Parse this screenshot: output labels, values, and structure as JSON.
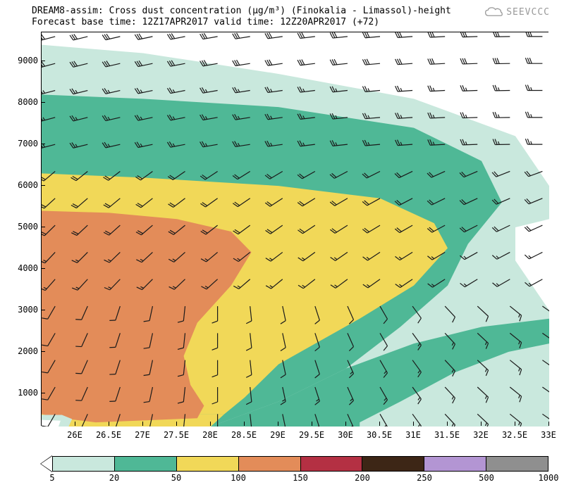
{
  "title_line1": "DREAM8-assim: Cross dust concentration (µg/m³) (Finokalia - Limassol)-height",
  "title_line2": "Forecast base time: 12Z17APR2017    valid time: 12Z20APR2017 (+72)",
  "logo_text": "SEEVCCC",
  "chart": {
    "type": "contour-cross-section",
    "xlim": [
      25.5,
      33.0
    ],
    "ylim": [
      200,
      9700
    ],
    "x_ticks": [
      26,
      26.5,
      27,
      27.5,
      28,
      28.5,
      29,
      29.5,
      30,
      30.5,
      31,
      31.5,
      32,
      32.5,
      33
    ],
    "x_tick_labels": [
      "26E",
      "26.5E",
      "27E",
      "27.5E",
      "28E",
      "28.5E",
      "29E",
      "29.5E",
      "30E",
      "30.5E",
      "31E",
      "31.5E",
      "32E",
      "32.5E",
      "33E"
    ],
    "y_ticks": [
      1000,
      2000,
      3000,
      4000,
      5000,
      6000,
      7000,
      8000,
      9000
    ],
    "contour_levels": [
      5,
      20,
      50,
      100,
      150,
      200,
      250,
      500,
      1000
    ],
    "contour_colors": [
      "#ffffff",
      "#c9e8dd",
      "#4fb896",
      "#f1d858",
      "#e38c59",
      "#b43043",
      "#3d2616",
      "#b395d3",
      "#8f8f8f"
    ],
    "background_color": "#ffffff",
    "axis_fontsize": 12,
    "title_fontsize": 13,
    "wind_barbs": {
      "grid_nx": 16,
      "grid_ny": 15,
      "barb_color": "#1a1a1a",
      "barb_length": 24
    },
    "contour_regions": [
      {
        "level": 0,
        "desc": "white top-right corner"
      },
      {
        "level": 1,
        "desc": "pale teal band upper & right edge"
      },
      {
        "level": 2,
        "desc": "teal band mid/lower-right"
      },
      {
        "level": 3,
        "desc": "yellow mid region"
      },
      {
        "level": 4,
        "desc": "orange lower-left lobe"
      }
    ]
  }
}
